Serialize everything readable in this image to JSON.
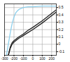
{
  "chart_data": {
    "type": "line",
    "xlim": [
      -300,
      250
    ],
    "xticks": [
      -300,
      -200,
      -100,
      0,
      100,
      200
    ],
    "ylim": [
      -0.15,
      0.55
    ],
    "yticks": [
      -0.1,
      0,
      0.1,
      0.2,
      0.3,
      0.4,
      0.5
    ],
    "grid": true,
    "series": [
      {
        "color": "#8fd0ec",
        "x": [
          -280,
          -260,
          -240,
          -220,
          -200,
          -180,
          -160,
          -140,
          -100,
          -50,
          0,
          100,
          200,
          250
        ],
        "values": [
          -0.15,
          0.0,
          0.15,
          0.28,
          0.37,
          0.43,
          0.46,
          0.48,
          0.5,
          0.51,
          0.51,
          0.52,
          0.52,
          0.52
        ]
      },
      {
        "color": "#222222",
        "x": [
          -260,
          -240,
          -220,
          -200,
          -150,
          -100,
          -50,
          0,
          100,
          200,
          250
        ],
        "values": [
          -0.15,
          -0.04,
          0.02,
          0.05,
          0.1,
          0.14,
          0.19,
          0.23,
          0.32,
          0.42,
          0.47
        ]
      },
      {
        "color": "#222222",
        "x": [
          -260,
          -240,
          -220,
          -200,
          -150,
          -100,
          -50,
          0,
          100,
          200,
          250
        ],
        "values": [
          -0.15,
          -0.06,
          0.0,
          0.03,
          0.08,
          0.12,
          0.16,
          0.2,
          0.29,
          0.39,
          0.44
        ]
      }
    ]
  }
}
